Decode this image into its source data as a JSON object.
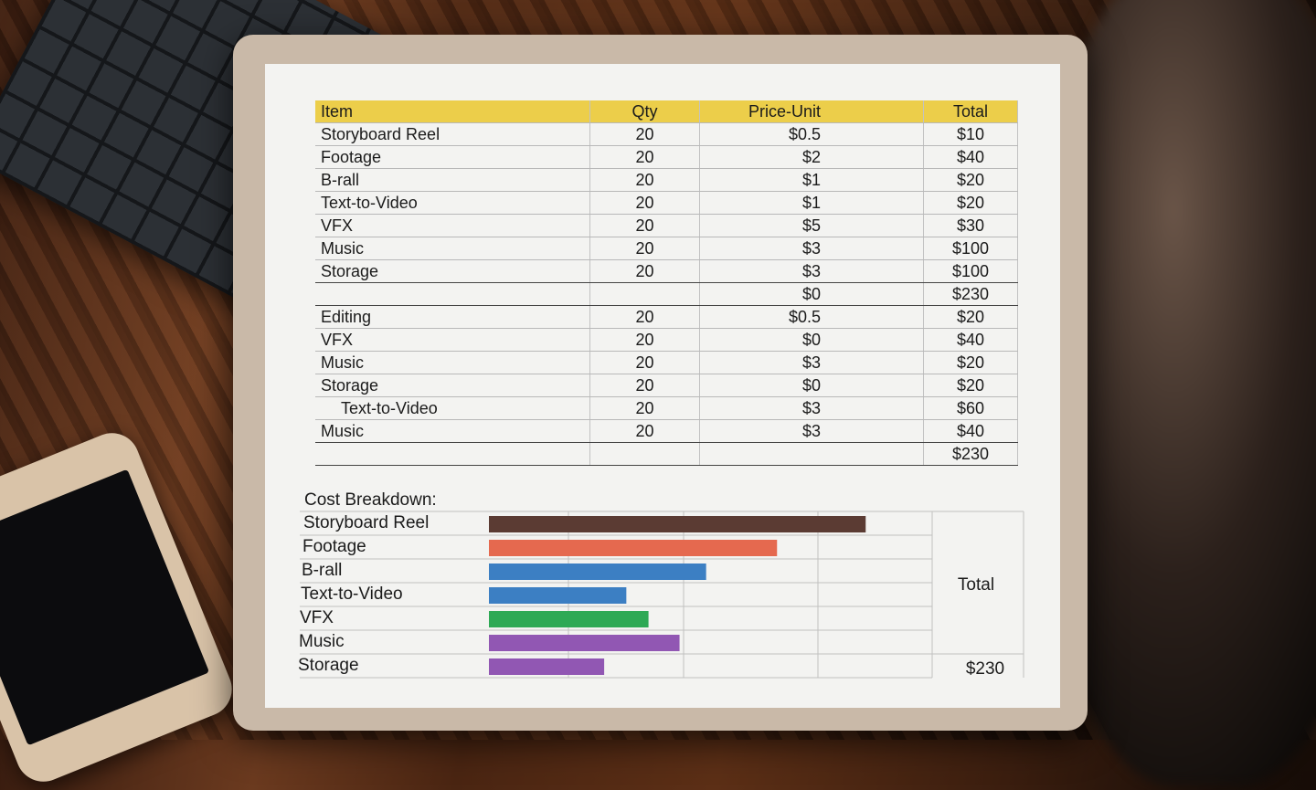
{
  "table": {
    "header": [
      "Item",
      "Qty",
      "Price-Unit",
      "Total"
    ],
    "rows": [
      [
        "Storyboard Reel",
        "20",
        "$0.5",
        "$10"
      ],
      [
        "Footage",
        "20",
        "$2",
        "$40"
      ],
      [
        "B-rall",
        "20",
        "$1",
        "$20"
      ],
      [
        "Text-to-Video",
        "20",
        "$1",
        "$20"
      ],
      [
        "VFX",
        "20",
        "$5",
        "$30"
      ],
      [
        "Music",
        "20",
        "$3",
        "$100"
      ],
      [
        "Storage",
        "20",
        "$3",
        "$100"
      ],
      [
        null,
        null,
        "$0",
        "$230"
      ],
      [
        "Editing",
        "20",
        "$0.5",
        "$20"
      ],
      [
        "VFX",
        "20",
        "$0",
        "$40"
      ],
      [
        "Music",
        "20",
        "$3",
        "$20"
      ],
      [
        "Storage",
        "20",
        "$0",
        "$20"
      ],
      [
        "Text-to-Video",
        "20",
        "$3",
        "$60"
      ],
      [
        "Music",
        "20",
        "$3",
        "$40"
      ],
      [
        null,
        null,
        null,
        "$230"
      ]
    ]
  },
  "chart_data": {
    "type": "bar",
    "orientation": "horizontal",
    "title": "Cost Breakdown:",
    "categories": [
      "Storyboard Reel",
      "Footage",
      "B-rall",
      "Text-to-Video",
      "VFX",
      "Music",
      "Storage"
    ],
    "values": [
      85,
      65,
      49,
      31,
      36,
      43,
      26
    ],
    "colors": [
      "#5b3b33",
      "#e5694f",
      "#3c7fc3",
      "#3c7fc3",
      "#2ea955",
      "#9157b3",
      "#9157b3"
    ],
    "xlim": [
      0,
      100
    ],
    "total_label": "Total",
    "total_value": "$230"
  }
}
